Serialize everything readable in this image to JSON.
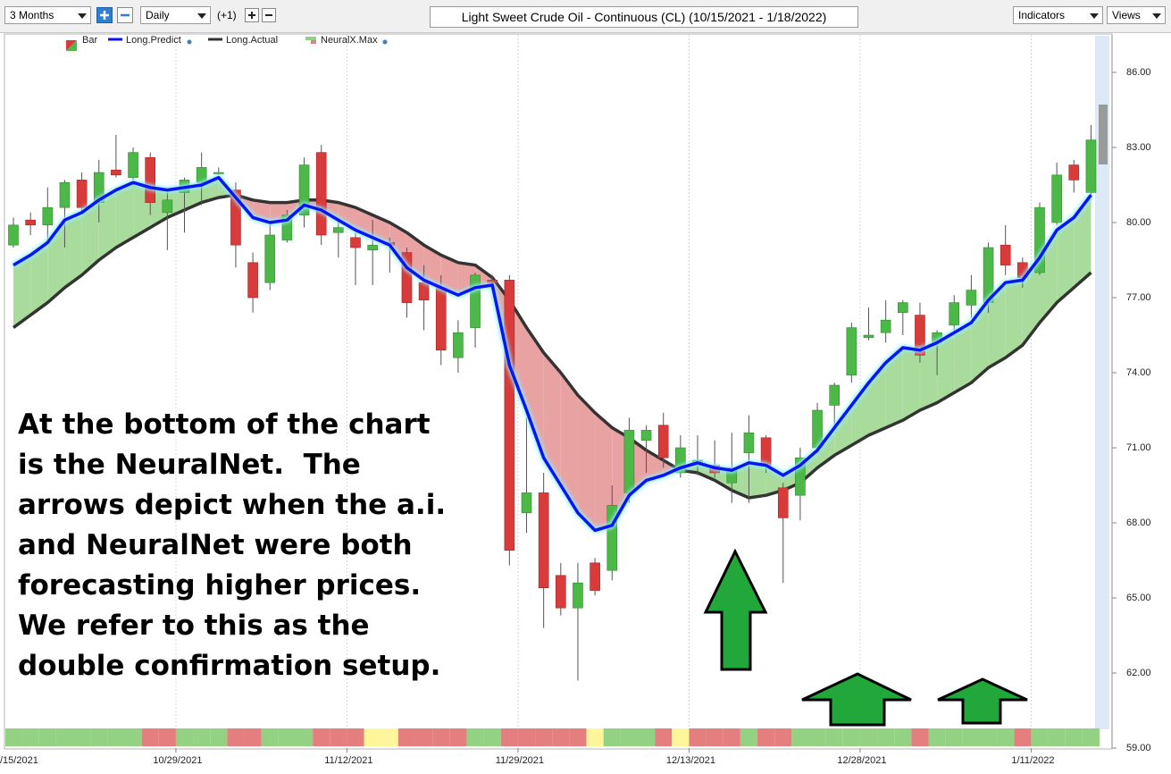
{
  "toolbar": {
    "range": "3 Months",
    "interval": "Daily",
    "offset": "(+1)",
    "indicators": "Indicators",
    "views": "Views"
  },
  "chart_data": {
    "type": "candlestick",
    "title": "Light Sweet Crude Oil - Continuous (CL) (10/15/2021 - 1/18/2022)",
    "annotation": [
      "At the bottom of the chart",
      "is the NeuralNet.  The",
      "arrows depict when the a.i.",
      "and NeuralNet were both",
      "forecasting higher prices.",
      "We refer to this as the",
      "double confirmation setup."
    ],
    "categories": [
      "/15/2021",
      null,
      null,
      null,
      null,
      null,
      null,
      null,
      null,
      null,
      "10/29/2021",
      null,
      null,
      null,
      null,
      null,
      null,
      null,
      null,
      null,
      "11/12/2021",
      null,
      null,
      null,
      null,
      null,
      null,
      null,
      null,
      null,
      "11/29/2021",
      null,
      null,
      null,
      null,
      null,
      null,
      null,
      null,
      null,
      "12/13/2021",
      null,
      null,
      null,
      null,
      null,
      null,
      null,
      null,
      null,
      "12/28/2021",
      null,
      null,
      null,
      null,
      null,
      null,
      null,
      null,
      null,
      "1/11/2022",
      null,
      null,
      null
    ],
    "series": [
      {
        "name": "Bar",
        "up_color": "#4cb847",
        "down_color": "#d93b3b",
        "open": [
          79.1,
          80.1,
          79.9,
          80.6,
          81.7,
          80.8,
          82.1,
          81.8,
          82.6,
          80.4,
          81.2,
          81.6,
          82.0,
          81.3,
          78.4,
          77.6,
          79.3,
          80.3,
          82.8,
          79.6,
          79.4,
          78.9,
          79.2,
          78.8,
          77.6,
          77.4,
          74.6,
          75.8,
          77.7,
          77.7,
          68.4,
          69.2,
          65.9,
          64.6,
          66.4,
          66.1,
          69.2,
          71.3,
          71.9,
          70.0,
          70.3,
          70.3,
          69.6,
          70.8,
          71.4,
          69.4,
          69.1,
          71.0,
          72.7,
          73.9,
          75.4,
          75.6,
          76.4,
          76.3,
          75.2,
          75.9,
          76.7,
          76.8,
          79.1,
          78.4,
          78.0,
          80.0,
          82.3,
          81.2
        ],
        "high": [
          80.2,
          80.4,
          81.4,
          81.7,
          82.0,
          82.5,
          83.5,
          83.0,
          82.8,
          81.2,
          81.8,
          82.8,
          82.2,
          81.6,
          78.8,
          80.0,
          80.5,
          82.6,
          83.1,
          80.2,
          79.6,
          80.1,
          79.4,
          79.0,
          78.3,
          77.9,
          76.1,
          78.0,
          77.9,
          77.9,
          72.2,
          70.0,
          66.4,
          66.4,
          66.6,
          69.5,
          72.2,
          71.9,
          72.4,
          71.5,
          71.5,
          71.3,
          71.6,
          72.3,
          71.5,
          69.6,
          71.0,
          72.8,
          73.6,
          76.0,
          76.6,
          76.9,
          76.9,
          76.8,
          75.7,
          77.1,
          77.9,
          79.2,
          79.9,
          78.6,
          80.8,
          82.4,
          82.5,
          83.9
        ],
        "low": [
          79.0,
          79.5,
          79.3,
          79.0,
          80.4,
          80.0,
          81.8,
          81.7,
          80.3,
          78.9,
          79.6,
          80.7,
          81.9,
          78.2,
          76.4,
          77.3,
          79.2,
          79.8,
          79.1,
          78.6,
          77.5,
          77.5,
          78.0,
          76.2,
          75.7,
          74.3,
          74.0,
          75.0,
          77.4,
          66.3,
          67.6,
          63.8,
          64.3,
          61.7,
          65.1,
          65.7,
          68.8,
          70.0,
          70.2,
          69.8,
          69.9,
          69.8,
          68.8,
          68.8,
          70.0,
          65.6,
          68.1,
          70.8,
          71.9,
          73.6,
          75.3,
          75.2,
          75.5,
          74.4,
          73.9,
          75.6,
          76.2,
          76.4,
          77.9,
          77.4,
          77.9,
          79.9,
          81.2,
          81.1
        ],
        "close": [
          79.9,
          79.9,
          80.6,
          81.6,
          80.6,
          82.0,
          81.9,
          82.8,
          80.8,
          80.9,
          81.7,
          82.2,
          82.0,
          79.1,
          77.0,
          79.5,
          80.3,
          82.3,
          79.5,
          79.8,
          79.0,
          79.1,
          79.1,
          76.8,
          76.9,
          74.9,
          75.6,
          77.9,
          77.6,
          66.9,
          69.2,
          65.4,
          64.6,
          65.6,
          65.3,
          68.7,
          71.7,
          71.7,
          70.6,
          71.0,
          70.5,
          70.0,
          70.2,
          71.6,
          70.3,
          68.2,
          70.6,
          72.5,
          73.5,
          75.8,
          75.5,
          76.1,
          76.8,
          74.7,
          75.6,
          76.8,
          77.3,
          79.0,
          78.3,
          77.8,
          80.6,
          81.9,
          81.7,
          83.3
        ]
      },
      {
        "name": "Long.Predict",
        "color": "#0a14f0",
        "values": [
          78.3,
          78.7,
          79.2,
          80.1,
          80.4,
          80.9,
          81.3,
          81.6,
          81.4,
          81.3,
          81.4,
          81.5,
          81.8,
          81.0,
          80.2,
          80.0,
          80.1,
          80.7,
          80.5,
          80.1,
          79.7,
          79.4,
          79.1,
          78.2,
          77.7,
          77.4,
          77.1,
          77.4,
          77.5,
          74.3,
          72.5,
          70.6,
          69.5,
          68.4,
          67.7,
          67.9,
          69.1,
          69.7,
          69.9,
          70.2,
          70.4,
          70.2,
          70.1,
          70.4,
          70.3,
          69.9,
          70.3,
          70.9,
          71.8,
          72.7,
          73.6,
          74.4,
          75.0,
          74.9,
          75.2,
          75.6,
          76.0,
          76.9,
          77.6,
          77.7,
          78.6,
          79.7,
          80.2,
          81.1
        ]
      },
      {
        "name": "Long.Actual",
        "color": "#333333",
        "values": [
          75.8,
          76.3,
          76.8,
          77.4,
          77.9,
          78.5,
          79.0,
          79.4,
          79.8,
          80.2,
          80.5,
          80.8,
          81.0,
          81.1,
          80.9,
          80.8,
          80.8,
          80.9,
          80.9,
          80.8,
          80.6,
          80.3,
          80.0,
          79.6,
          79.1,
          78.7,
          78.4,
          78.3,
          77.8,
          76.9,
          75.8,
          74.8,
          74.0,
          73.1,
          72.4,
          71.8,
          71.4,
          70.9,
          70.5,
          70.1,
          70.0,
          69.7,
          69.3,
          69.0,
          69.1,
          69.3,
          69.6,
          70.2,
          70.7,
          71.1,
          71.5,
          71.8,
          72.1,
          72.5,
          72.8,
          73.2,
          73.6,
          74.2,
          74.6,
          75.1,
          76.0,
          76.8,
          77.4,
          78.0
        ]
      },
      {
        "name": "NeuralX.Max",
        "colors": [
          "#92d282",
          "#92d282",
          "#92d282",
          "#92d282",
          "#92d282",
          "#92d282",
          "#92d282",
          "#92d282",
          "#e57f7f",
          "#e57f7f",
          "#92d282",
          "#92d282",
          "#92d282",
          "#e57f7f",
          "#e57f7f",
          "#92d282",
          "#92d282",
          "#92d282",
          "#e57f7f",
          "#e57f7f",
          "#e57f7f",
          "#fff59a",
          "#fff59a",
          "#e57f7f",
          "#e57f7f",
          "#e57f7f",
          "#e57f7f",
          "#92d282",
          "#92d282",
          "#e57f7f",
          "#e57f7f",
          "#e57f7f",
          "#e57f7f",
          "#e57f7f",
          "#fff59a",
          "#92d282",
          "#92d282",
          "#92d282",
          "#e57f7f",
          "#fff59a",
          "#e57f7f",
          "#e57f7f",
          "#e57f7f",
          "#92d282",
          "#e57f7f",
          "#e57f7f",
          "#92d282",
          "#92d282",
          "#92d282",
          "#92d282",
          "#92d282",
          "#92d282",
          "#92d282",
          "#e57f7f",
          "#92d282",
          "#92d282",
          "#92d282",
          "#92d282",
          "#92d282",
          "#e57f7f",
          "#92d282",
          "#92d282",
          "#92d282",
          "#92d282"
        ]
      }
    ],
    "fill_up_color": "#a9dc9c",
    "fill_down_color": "#e9a2a2",
    "ylim": [
      59,
      87.5
    ],
    "yticks": [
      {
        "value": 59,
        "label": "59.00"
      },
      {
        "value": 62,
        "label": "62.00"
      },
      {
        "value": 65,
        "label": "65.00"
      },
      {
        "value": 68,
        "label": "68.00"
      },
      {
        "value": 71,
        "label": "71.00"
      },
      {
        "value": 74,
        "label": "74.00"
      },
      {
        "value": 77,
        "label": "77.00"
      },
      {
        "value": 80,
        "label": "80.00"
      },
      {
        "value": 83,
        "label": "83.00"
      },
      {
        "value": 86,
        "label": "86.00"
      }
    ],
    "grid": true
  }
}
